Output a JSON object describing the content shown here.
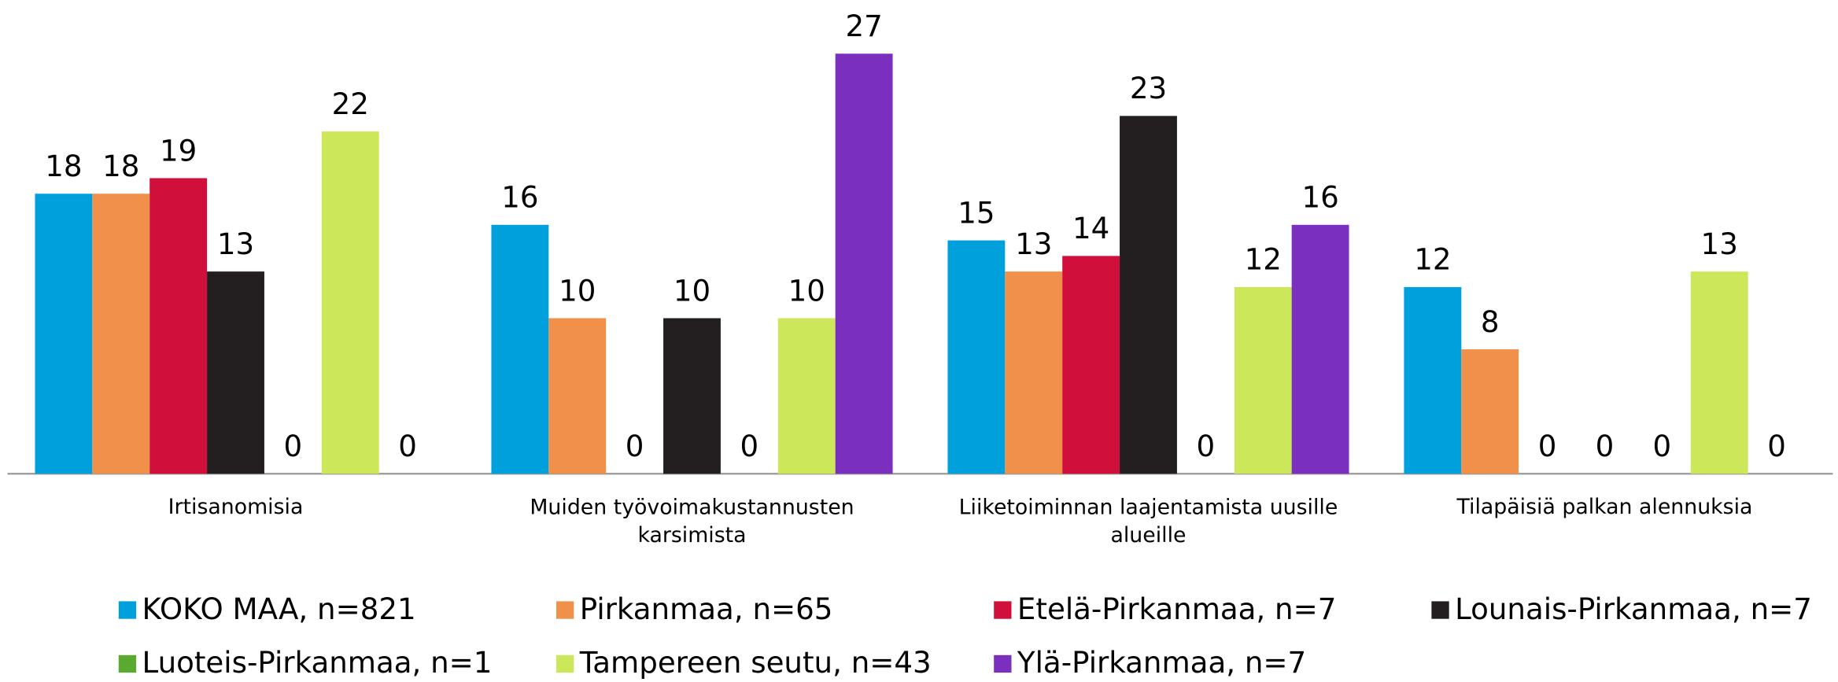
{
  "chart_data": {
    "type": "bar",
    "categories": [
      "Irtisanomisia",
      "Muiden työvoimakustannusten karsimista",
      "Liiketoiminnan laajentamista uusille alueille",
      "Tilapäisiä palkan alennuksia"
    ],
    "series": [
      {
        "name": "KOKO MAA, n=821",
        "color": "#00a0dc",
        "values": [
          18,
          16,
          15,
          12
        ]
      },
      {
        "name": "Pirkanmaa, n=65",
        "color": "#f0904a",
        "values": [
          18,
          10,
          13,
          8
        ]
      },
      {
        "name": "Etelä-Pirkanmaa, n=7",
        "color": "#d0103a",
        "values": [
          19,
          0,
          14,
          0
        ]
      },
      {
        "name": "Lounais-Pirkanmaa, n=7",
        "color": "#231f20",
        "values": [
          13,
          10,
          23,
          0
        ]
      },
      {
        "name": "Luoteis-Pirkanmaa, n=1",
        "color": "#5aaa32",
        "values": [
          0,
          0,
          0,
          0
        ]
      },
      {
        "name": "Tampereen seutu, n=43",
        "color": "#cde75a",
        "values": [
          22,
          10,
          12,
          13
        ]
      },
      {
        "name": "Ylä-Pirkanmaa, n=7",
        "color": "#7b2fbf",
        "values": [
          0,
          27,
          16,
          0
        ]
      }
    ],
    "ylim": [
      0,
      30
    ],
    "legend": "bottom"
  }
}
